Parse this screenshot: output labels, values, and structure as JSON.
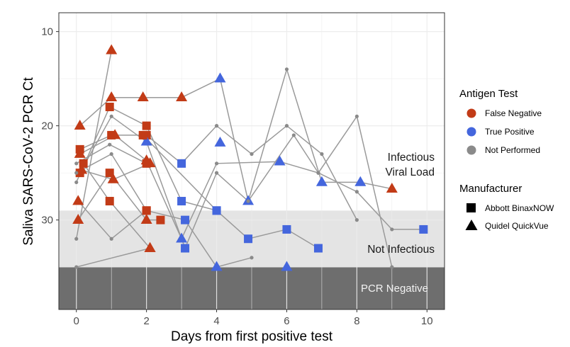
{
  "chart_data": {
    "type": "scatter",
    "xlabel": "Days from first positive test",
    "ylabel": "Saliva SARS-CoV-2 PCR Ct",
    "xlim": [
      -0.5,
      10.5
    ],
    "ylim": [
      8,
      39.5
    ],
    "y_reversed": true,
    "x_ticks": [
      0,
      2,
      4,
      6,
      8,
      10
    ],
    "y_ticks": [
      10,
      20,
      30
    ],
    "grid": true,
    "bands": [
      {
        "name": "infectious",
        "label": "Infectious\nViral Load",
        "y_from": 8,
        "y_to": 29,
        "color": "#ffffff",
        "text_color": "#1a1a1a"
      },
      {
        "name": "not-infectious",
        "label": "Not  Infectious",
        "y_from": 29,
        "y_to": 35,
        "color": "#e4e4e4",
        "text_color": "#1a1a1a"
      },
      {
        "name": "pcr-negative",
        "label": "PCR Negative",
        "y_from": 35,
        "y_to": 39.5,
        "color": "#6e6e6e",
        "text_color": "#f2f2f2"
      }
    ],
    "colors": {
      "false_negative": "#c23b17",
      "true_positive": "#4466dd",
      "not_performed": "#8a8a8a",
      "line": "#9a9a9a",
      "axis_border": "#333333",
      "grid": "#ececec"
    },
    "legend": {
      "placement": "right",
      "antigen_title": "Antigen Test",
      "antigen_items": [
        {
          "label": "False Negative",
          "key": "false_negative"
        },
        {
          "label": "True Positive",
          "key": "true_positive"
        },
        {
          "label": "Not Performed",
          "key": "not_performed"
        }
      ],
      "manufacturer_title": "Manufacturer",
      "manufacturer_items": [
        {
          "label": "Abbott BinaxNOW",
          "shape": "square"
        },
        {
          "label": "Quidel QuickVue",
          "shape": "triangle"
        }
      ]
    },
    "series": [
      {
        "points": [
          {
            "x": 0.1,
            "y": 20,
            "t": "FN",
            "s": "tri"
          },
          {
            "x": 1,
            "y": 17,
            "t": "FN",
            "s": "tri"
          },
          {
            "x": 1.9,
            "y": 17,
            "t": "FN",
            "s": "tri"
          },
          {
            "x": 3,
            "y": 17,
            "t": "FN",
            "s": "tri"
          },
          {
            "x": 4.1,
            "y": 15,
            "t": "TP",
            "s": "tri"
          },
          {
            "x": 4.9,
            "y": 28,
            "t": "TP",
            "s": "tri"
          },
          {
            "x": 6,
            "y": 14,
            "t": "NP",
            "s": "dot"
          },
          {
            "x": 7,
            "y": 26,
            "t": "TP",
            "s": "tri"
          },
          {
            "x": 8.1,
            "y": 26,
            "t": "TP",
            "s": "tri"
          },
          {
            "x": 9,
            "y": 26.7,
            "t": "FN",
            "s": "tri"
          }
        ]
      },
      {
        "points": [
          {
            "x": 0.1,
            "y": 22.5,
            "t": "FN",
            "s": "sq"
          },
          {
            "x": 1,
            "y": 21,
            "t": "FN",
            "s": "sq"
          },
          {
            "x": 2,
            "y": 21,
            "t": "FN",
            "s": "sq"
          },
          {
            "x": 3,
            "y": 24,
            "t": "TP",
            "s": "sq"
          },
          {
            "x": 4,
            "y": 20,
            "t": "NP",
            "s": "dot"
          },
          {
            "x": 5,
            "y": 23,
            "t": "NP",
            "s": "dot"
          },
          {
            "x": 6,
            "y": 20,
            "t": "NP",
            "s": "dot"
          },
          {
            "x": 7,
            "y": 23,
            "t": "NP",
            "s": "dot"
          },
          {
            "x": 8,
            "y": 30,
            "t": "NP",
            "s": "dot"
          }
        ]
      },
      {
        "points": [
          {
            "x": 0.1,
            "y": 23,
            "t": "FN",
            "s": "tri"
          },
          {
            "x": 1.1,
            "y": 21,
            "t": "FN",
            "s": "tri"
          },
          {
            "x": 2,
            "y": 23.7,
            "t": "FN",
            "s": "tri"
          },
          {
            "x": 3,
            "y": 32,
            "t": "TP",
            "s": "tri"
          },
          {
            "x": 4,
            "y": 24,
            "t": "NP",
            "s": "dot"
          },
          {
            "x": 5.8,
            "y": 23.8,
            "t": "TP",
            "s": "tri"
          },
          {
            "x": 6.9,
            "y": 25,
            "t": "NP",
            "s": "dot"
          },
          {
            "x": 8,
            "y": 19,
            "t": "NP",
            "s": "dot"
          },
          {
            "x": 9,
            "y": 35,
            "t": "NP",
            "s": "dot"
          }
        ]
      },
      {
        "points": [
          {
            "x": 0,
            "y": 26,
            "t": "NP",
            "s": "dot"
          },
          {
            "x": 0.95,
            "y": 18,
            "t": "FN",
            "s": "sq"
          },
          {
            "x": 2,
            "y": 20,
            "t": "FN",
            "s": "sq"
          },
          {
            "x": 3,
            "y": 28,
            "t": "TP",
            "s": "sq"
          },
          {
            "x": 4,
            "y": 29,
            "t": "TP",
            "s": "sq"
          },
          {
            "x": 4.9,
            "y": 32,
            "t": "TP",
            "s": "sq"
          },
          {
            "x": 6,
            "y": 31,
            "t": "TP",
            "s": "sq"
          },
          {
            "x": 6.9,
            "y": 33,
            "t": "TP",
            "s": "sq"
          }
        ]
      },
      {
        "points": [
          {
            "x": 0.1,
            "y": 25,
            "t": "FN",
            "s": "sq"
          },
          {
            "x": 1,
            "y": 19,
            "t": "NP",
            "s": "dot"
          },
          {
            "x": 2,
            "y": 21.7,
            "t": "TP",
            "s": "tri"
          },
          {
            "x": 3.1,
            "y": 33,
            "t": "TP",
            "s": "sq"
          },
          {
            "x": 4,
            "y": 25,
            "t": "NP",
            "s": "dot"
          },
          {
            "x": 4.9,
            "y": 28,
            "t": "NP",
            "s": "dot"
          },
          {
            "x": 6.2,
            "y": 21,
            "t": "NP",
            "s": "dot"
          },
          {
            "x": 6.9,
            "y": 25,
            "t": "NP",
            "s": "dot"
          },
          {
            "x": 8,
            "y": 27,
            "t": "NP",
            "s": "dot"
          },
          {
            "x": 9,
            "y": 31,
            "t": "NP",
            "s": "dot"
          },
          {
            "x": 9.9,
            "y": 31,
            "t": "TP",
            "s": "sq"
          }
        ]
      },
      {
        "points": [
          {
            "x": 0.05,
            "y": 28,
            "t": "FN",
            "s": "tri"
          },
          {
            "x": 1,
            "y": 32,
            "t": "NP",
            "s": "dot"
          },
          {
            "x": 2,
            "y": 29,
            "t": "FN",
            "s": "sq"
          },
          {
            "x": 3.1,
            "y": 30,
            "t": "TP",
            "s": "sq"
          },
          {
            "x": 4,
            "y": 35,
            "t": "TP",
            "s": "tri"
          },
          {
            "x": 5,
            "y": 34,
            "t": "NP",
            "s": "dot"
          }
        ]
      },
      {
        "points": [
          {
            "x": 0.05,
            "y": 30,
            "t": "FN",
            "s": "tri"
          },
          {
            "x": 0.95,
            "y": 25,
            "t": "FN",
            "s": "sq"
          },
          {
            "x": 2,
            "y": 30,
            "t": "FN",
            "s": "tri"
          },
          {
            "x": 2.4,
            "y": 30,
            "t": "FN",
            "s": "sq"
          }
        ]
      },
      {
        "points": [
          {
            "x": 0,
            "y": 32,
            "t": "NP",
            "s": "dot"
          },
          {
            "x": 1,
            "y": 12,
            "t": "FN",
            "s": "tri"
          }
        ]
      },
      {
        "points": [
          {
            "x": 0.2,
            "y": 24,
            "t": "FN",
            "s": "sq"
          },
          {
            "x": 0.95,
            "y": 28,
            "t": "FN",
            "s": "sq"
          },
          {
            "x": 2.1,
            "y": 33,
            "t": "FN",
            "s": "tri"
          }
        ]
      },
      {
        "points": [
          {
            "x": 0,
            "y": 35,
            "t": "NP",
            "s": "dot"
          },
          {
            "x": 2.1,
            "y": 33,
            "t": "FN",
            "s": "tri"
          }
        ]
      },
      {
        "points": [
          {
            "x": 0,
            "y": 24,
            "t": "NP",
            "s": "dot"
          },
          {
            "x": 0.95,
            "y": 22,
            "t": "NP",
            "s": "dot"
          },
          {
            "x": 2,
            "y": 24,
            "t": "FN",
            "s": "sq"
          }
        ]
      },
      {
        "points": [
          {
            "x": 0.15,
            "y": 24.7,
            "t": "FN",
            "s": "tri"
          },
          {
            "x": 1.05,
            "y": 25.7,
            "t": "FN",
            "s": "tri"
          },
          {
            "x": 2.1,
            "y": 24,
            "t": "FN",
            "s": "tri"
          }
        ]
      },
      {
        "points": [
          {
            "x": 0,
            "y": 25,
            "t": "NP",
            "s": "dot"
          },
          {
            "x": 1,
            "y": 23,
            "t": "NP",
            "s": "dot"
          },
          {
            "x": 2,
            "y": 29,
            "t": "FN",
            "s": "sq"
          }
        ]
      },
      {
        "points": [
          {
            "x": 1.9,
            "y": 21,
            "t": "FN",
            "s": "sq"
          },
          {
            "x": 4,
            "y": 29,
            "t": "TP",
            "s": "sq"
          }
        ]
      },
      {
        "points": [
          {
            "x": 6,
            "y": 35,
            "t": "TP",
            "s": "tri"
          }
        ]
      },
      {
        "points": [
          {
            "x": 4.1,
            "y": 21.8,
            "t": "TP",
            "s": "tri"
          }
        ]
      }
    ]
  }
}
